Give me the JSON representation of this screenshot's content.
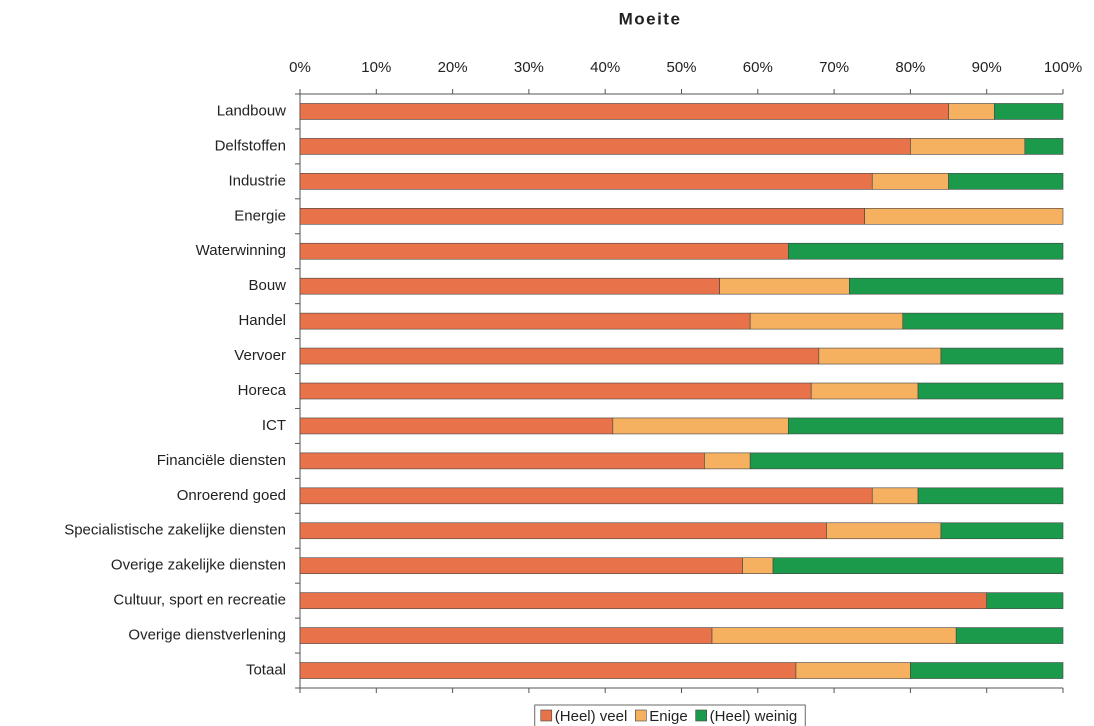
{
  "chart_data": {
    "type": "stacked_bar_horizontal",
    "title": "Moeite",
    "categories": [
      "Landbouw",
      "Delfstoffen",
      "Industrie",
      "Energie",
      "Waterwinning",
      "Bouw",
      "Handel",
      "Vervoer",
      "Horeca",
      "ICT",
      "Financiële diensten",
      "Onroerend goed",
      "Specialistische zakelijke diensten",
      "Overige zakelijke diensten",
      "Cultuur, sport en recreatie",
      "Overige dienstverlening",
      "Totaal"
    ],
    "series": [
      {
        "name": "(Heel) veel",
        "color": "#e8734a",
        "values": [
          85,
          80,
          75,
          74,
          64,
          55,
          59,
          68,
          67,
          41,
          53,
          75,
          69,
          58,
          90,
          54,
          65
        ]
      },
      {
        "name": "Enige",
        "color": "#f5b060",
        "values": [
          6,
          15,
          10,
          26,
          0,
          17,
          20,
          16,
          14,
          23,
          6,
          6,
          15,
          4,
          0,
          32,
          15
        ]
      },
      {
        "name": "(Heel) weinig",
        "color": "#1a9a4a",
        "values": [
          9,
          5,
          15,
          0,
          36,
          28,
          21,
          16,
          19,
          36,
          41,
          19,
          16,
          38,
          10,
          14,
          20
        ]
      }
    ],
    "xlim": [
      0,
      100
    ],
    "xticks": [
      {
        "value": 0,
        "label": "0%"
      },
      {
        "value": 10,
        "label": "10%"
      },
      {
        "value": 20,
        "label": "20%"
      },
      {
        "value": 30,
        "label": "30%"
      },
      {
        "value": 40,
        "label": "40%"
      },
      {
        "value": 50,
        "label": "50%"
      },
      {
        "value": 60,
        "label": "60%"
      },
      {
        "value": 70,
        "label": "70%"
      },
      {
        "value": 80,
        "label": "80%"
      },
      {
        "value": 90,
        "label": "90%"
      },
      {
        "value": 100,
        "label": "100%"
      }
    ],
    "legend": "bottom"
  }
}
